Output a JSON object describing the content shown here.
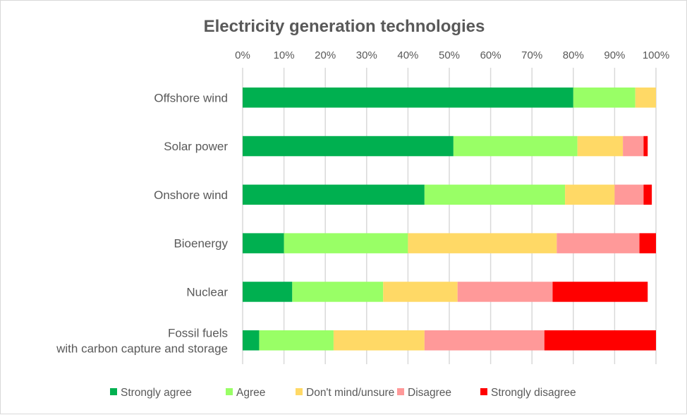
{
  "chart_data": {
    "type": "bar",
    "orientation": "horizontal",
    "stacked": true,
    "title": "Electricity generation technologies",
    "xlabel": "",
    "ylabel": "",
    "xlim": [
      0,
      100
    ],
    "x_ticks": [
      "0%",
      "10%",
      "20%",
      "30%",
      "40%",
      "50%",
      "60%",
      "70%",
      "80%",
      "90%",
      "100%"
    ],
    "x_tick_values": [
      0,
      10,
      20,
      30,
      40,
      50,
      60,
      70,
      80,
      90,
      100
    ],
    "grid": "vertical",
    "legend_position": "bottom",
    "categories": [
      [
        "Offshore wind"
      ],
      [
        "Solar power"
      ],
      [
        "Onshore wind"
      ],
      [
        "Bioenergy"
      ],
      [
        "Nuclear"
      ],
      [
        "Fossil fuels",
        "with carbon capture and storage"
      ]
    ],
    "series": [
      {
        "name": "Strongly agree",
        "color": "#00b050",
        "values": [
          80,
          51,
          44,
          10,
          12,
          4
        ]
      },
      {
        "name": "Agree",
        "color": "#99ff66",
        "values": [
          15,
          30,
          34,
          30,
          22,
          18
        ]
      },
      {
        "name": "Don't mind/unsure",
        "color": "#ffd966",
        "values": [
          5,
          11,
          12,
          36,
          18,
          22
        ]
      },
      {
        "name": "Disagree",
        "color": "#ff9999",
        "values": [
          0,
          5,
          7,
          20,
          23,
          29
        ]
      },
      {
        "name": "Strongly disagree",
        "color": "#ff0000",
        "values": [
          0,
          1,
          2,
          4,
          23,
          27
        ]
      }
    ]
  }
}
